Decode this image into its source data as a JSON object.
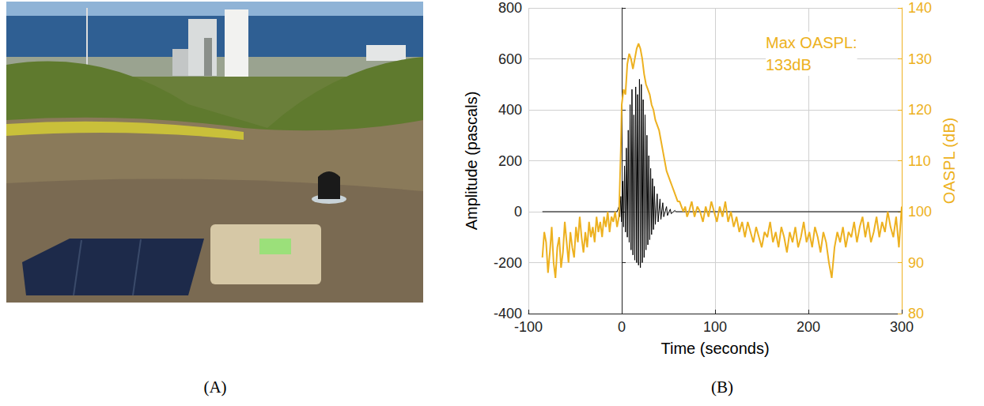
{
  "panel_labels": [
    "(A)",
    "(B)"
  ],
  "chart_data": {
    "type": "line",
    "xlabel": "Time (seconds)",
    "ylabel": "Amplitude (pascals)",
    "y2label": "OASPL (dB)",
    "annotation": [
      "Max OASPL:",
      "133dB"
    ],
    "xlim": [
      -100,
      300
    ],
    "xticks": [
      -100,
      0,
      100,
      200,
      300
    ],
    "ylim": [
      -400,
      800
    ],
    "yticks": [
      -400,
      -200,
      0,
      200,
      400,
      600,
      800
    ],
    "y2lim": [
      80,
      140
    ],
    "y2ticks": [
      80,
      90,
      100,
      110,
      120,
      130,
      140
    ],
    "grid": true,
    "series": [
      {
        "color": "#000000",
        "x": [
          -85,
          -5,
          -3,
          -2,
          -1,
          0,
          1,
          2,
          3,
          4,
          5,
          6,
          7,
          8,
          9,
          10,
          11,
          12,
          13,
          14,
          15,
          16,
          17,
          18,
          19,
          20,
          21,
          22,
          23,
          24,
          25,
          26,
          27,
          28,
          29,
          30,
          31,
          32,
          33,
          34,
          35,
          36,
          38,
          39,
          41,
          42,
          44,
          45,
          48,
          49,
          52,
          53,
          57,
          58,
          300
        ],
        "values": [
          0,
          0,
          20,
          -20,
          60,
          -40,
          120,
          -60,
          180,
          -80,
          250,
          -100,
          320,
          -120,
          420,
          -150,
          480,
          -170,
          380,
          -190,
          490,
          -200,
          460,
          -210,
          520,
          -220,
          500,
          -200,
          440,
          -180,
          380,
          -150,
          300,
          -130,
          220,
          -110,
          170,
          -90,
          130,
          -70,
          100,
          -50,
          70,
          -40,
          50,
          -30,
          35,
          -20,
          20,
          -15,
          10,
          -8,
          5,
          0,
          0
        ]
      },
      {
        "color": "#EDB120",
        "axis": "y2",
        "x": [
          -85,
          -83,
          -81,
          -79,
          -77,
          -75,
          -73,
          -71,
          -69,
          -67,
          -65,
          -63,
          -61,
          -59,
          -57,
          -55,
          -53,
          -51,
          -49,
          -47,
          -45,
          -43,
          -41,
          -39,
          -37,
          -35,
          -33,
          -31,
          -29,
          -27,
          -25,
          -23,
          -21,
          -19,
          -17,
          -15,
          -13,
          -11,
          -9,
          -7,
          -5,
          -3,
          -1,
          0,
          2,
          4,
          6,
          8,
          10,
          12,
          14,
          16,
          18,
          20,
          22,
          24,
          26,
          28,
          30,
          32,
          34,
          36,
          38,
          40,
          42,
          44,
          46,
          48,
          50,
          52,
          54,
          56,
          58,
          60,
          62,
          64,
          66,
          68,
          70,
          72,
          75,
          78,
          81,
          84,
          87,
          90,
          93,
          96,
          99,
          102,
          105,
          108,
          111,
          114,
          117,
          120,
          123,
          126,
          129,
          132,
          135,
          138,
          141,
          144,
          147,
          150,
          153,
          156,
          159,
          162,
          165,
          168,
          171,
          174,
          177,
          180,
          183,
          186,
          189,
          192,
          195,
          198,
          201,
          204,
          207,
          210,
          213,
          216,
          219,
          222,
          225,
          228,
          231,
          234,
          237,
          240,
          243,
          246,
          249,
          252,
          255,
          258,
          261,
          264,
          267,
          270,
          273,
          276,
          279,
          282,
          285,
          288,
          291,
          294,
          297,
          300
        ],
        "values": [
          91,
          96,
          94,
          88,
          92,
          97,
          90,
          87,
          93,
          95,
          89,
          92,
          98,
          94,
          90,
          96,
          93,
          91,
          97,
          94,
          99,
          95,
          92,
          96,
          93,
          98,
          95,
          97,
          94,
          99,
          96,
          98,
          95,
          99,
          97,
          100,
          96,
          99,
          98,
          100,
          97,
          99,
          112,
          121,
          124,
          123,
          129,
          131,
          130,
          128,
          130,
          132,
          133,
          132,
          130,
          127,
          125,
          124,
          123,
          121,
          120,
          118,
          117,
          116,
          114,
          112,
          110,
          108,
          107,
          106,
          105,
          104,
          103,
          102,
          102,
          101,
          100,
          101,
          99,
          100,
          102,
          99,
          101,
          100,
          98,
          101,
          99,
          102,
          100,
          98,
          101,
          99,
          102,
          98,
          100,
          97,
          99,
          96,
          98,
          95,
          98,
          96,
          94,
          97,
          95,
          93,
          96,
          95,
          98,
          94,
          96,
          93,
          97,
          95,
          92,
          96,
          94,
          97,
          93,
          95,
          98,
          94,
          96,
          93,
          97,
          95,
          92,
          96,
          94,
          90,
          87,
          93,
          96,
          94,
          97,
          93,
          96,
          95,
          98,
          94,
          97,
          99,
          95,
          98,
          94,
          96,
          99,
          95,
          98,
          96,
          100,
          97,
          95,
          99,
          93,
          101
        ]
      }
    ]
  }
}
